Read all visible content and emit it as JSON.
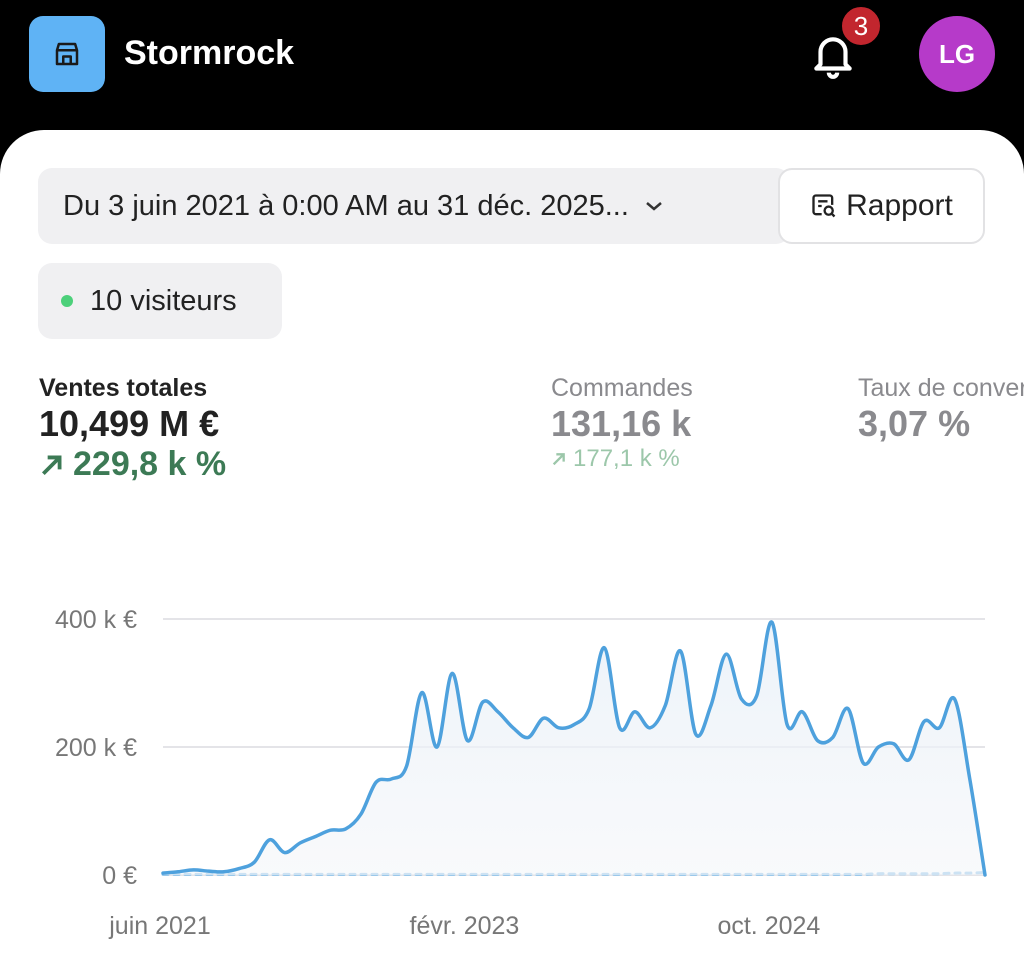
{
  "header": {
    "store": "Stormrock",
    "notifications": 3,
    "avatar": "LG"
  },
  "filters": {
    "date_range": "Du 3 juin 2021 à 0:00 AM au 31 déc. 2025...",
    "report_button": "Rapport",
    "visitors": "10 visiteurs"
  },
  "metrics": [
    {
      "label": "Ventes totales",
      "value": "10,499 M €",
      "change": "229,8 k %"
    },
    {
      "label": "Commandes",
      "value": "131,16 k",
      "change": "177,1 k %"
    },
    {
      "label": "Taux de conversion",
      "value": "3,07 %"
    }
  ],
  "chart_data": {
    "type": "line",
    "x": [
      "2021-06",
      "2021-07",
      "2021-08",
      "2021-09",
      "2021-10",
      "2021-11",
      "2021-12",
      "2022-01",
      "2022-02",
      "2022-03",
      "2022-04",
      "2022-05",
      "2022-06",
      "2022-07",
      "2022-08",
      "2022-09",
      "2022-10",
      "2022-11",
      "2022-12",
      "2023-01",
      "2023-02",
      "2023-03",
      "2023-04",
      "2023-05",
      "2023-06",
      "2023-07",
      "2023-08",
      "2023-09",
      "2023-10",
      "2023-11",
      "2023-12",
      "2024-01",
      "2024-02",
      "2024-03",
      "2024-04",
      "2024-05",
      "2024-06",
      "2024-07",
      "2024-08",
      "2024-09",
      "2024-10",
      "2024-11",
      "2024-12",
      "2025-01",
      "2025-02",
      "2025-03",
      "2025-04",
      "2025-05",
      "2025-06",
      "2025-07",
      "2025-08",
      "2025-09",
      "2025-10",
      "2025-11",
      "2025-12"
    ],
    "series": [
      {
        "color": "#4ea1dd",
        "values": [
          3000,
          5000,
          8000,
          6000,
          5000,
          10000,
          20000,
          55000,
          35000,
          50000,
          60000,
          70000,
          72000,
          95000,
          145000,
          150000,
          170000,
          285000,
          200000,
          315000,
          210000,
          270000,
          255000,
          230000,
          215000,
          245000,
          230000,
          235000,
          260000,
          355000,
          230000,
          255000,
          230000,
          265000,
          350000,
          220000,
          265000,
          345000,
          275000,
          280000,
          395000,
          235000,
          255000,
          210000,
          215000,
          260000,
          175000,
          200000,
          205000,
          180000,
          240000,
          230000,
          275000,
          150000,
          0
        ]
      },
      {
        "color": "#8fc3ea",
        "dashed": true,
        "values": [
          1000,
          1000,
          1000,
          1000,
          1000,
          1000,
          1000,
          1000,
          1000,
          1000,
          1000,
          1000,
          1000,
          1000,
          1000,
          1000,
          1000,
          1000,
          1000,
          1000,
          1000,
          1000,
          1000,
          1000,
          1000,
          1000,
          1000,
          1000,
          1000,
          1000,
          1000,
          1000,
          1000,
          1000,
          1000,
          1000,
          1000,
          1000,
          1000,
          1000,
          1000,
          1000,
          1000,
          1000,
          1000,
          1000,
          1000,
          2000,
          2000,
          2000,
          2000,
          2000,
          3000,
          3000,
          4000
        ]
      }
    ],
    "ylim": [
      0,
      400000
    ],
    "yticks": [
      {
        "value": 0,
        "label": "0 €"
      },
      {
        "value": 200000,
        "label": "200 k €"
      },
      {
        "value": 400000,
        "label": "400 k €"
      }
    ],
    "xticks": [
      {
        "value": "2021-06",
        "label": "juin 2021"
      },
      {
        "value": "2023-02",
        "label": "févr. 2023"
      },
      {
        "value": "2024-10",
        "label": "oct. 2024"
      }
    ],
    "grid": true
  }
}
